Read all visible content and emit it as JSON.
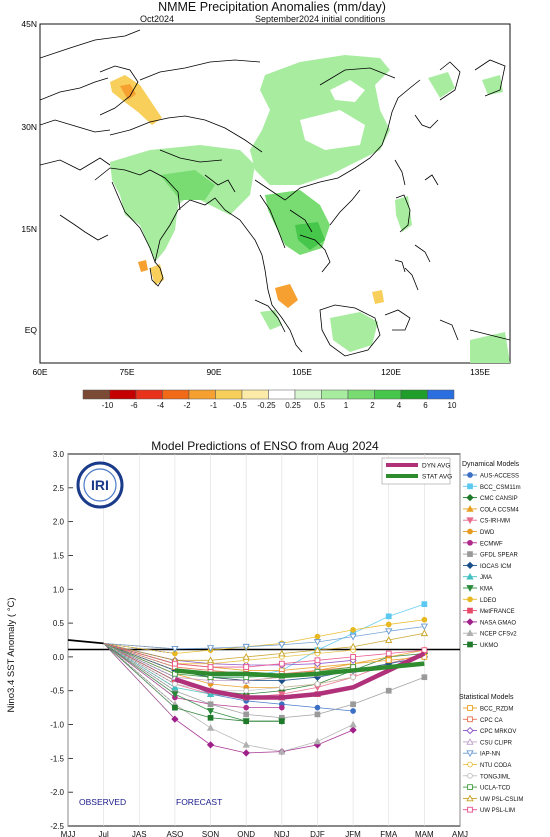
{
  "chart_data": [
    {
      "type": "map",
      "title": "NMME  Precipitation  Anomalies  (mm/day)",
      "subtitle_left": "Oct2024",
      "subtitle_right": "September2024  initial  conditions",
      "lat_ticks": [
        "45N",
        "30N",
        "15N",
        "EQ"
      ],
      "lon_ticks": [
        "60E",
        "75E",
        "90E",
        "105E",
        "120E",
        "135E"
      ],
      "colorbar": {
        "labels": [
          "-10",
          "-6",
          "-4",
          "-2",
          "-1",
          "-0.5",
          "-0.25",
          "0.25",
          "0.5",
          "1",
          "2",
          "4",
          "6",
          "10"
        ],
        "colors": [
          "#7b4a35",
          "#c40000",
          "#e8321c",
          "#f06a18",
          "#f5a030",
          "#f7cf5a",
          "#fbeaa8",
          "#ffffff",
          "#d6f5d0",
          "#a8eca0",
          "#78dc72",
          "#46c64a",
          "#1f9e2c",
          "#2a6ee0"
        ]
      }
    },
    {
      "type": "line",
      "title": "Model Predictions of ENSO from Aug 2024",
      "ylabel": "Nino3.4 SST Anomaly ( °C)",
      "ylim": [
        -2.5,
        3.0
      ],
      "yticks": [
        "3.0",
        "2.5",
        "2.0",
        "1.5",
        "1.0",
        "0.5",
        "0.0",
        "-0.5",
        "-1.0",
        "-1.5",
        "-2.0",
        "-2.5"
      ],
      "categories": [
        "MJJ",
        "Jul",
        "JAS",
        "ASO",
        "SON",
        "OND",
        "NDJ",
        "DJF",
        "JFM",
        "FMA",
        "MAM",
        "AMJ"
      ],
      "observed_label": "OBSERVED",
      "forecast_label": "FORECAST",
      "logo_text": "IRI",
      "observed": [
        0.25,
        0.2
      ],
      "averages_legend": [
        {
          "name": "DYN AVG",
          "color": "#b0307a"
        },
        {
          "name": "STAT AVG",
          "color": "#2e8b2e"
        }
      ],
      "dyn_avg": [
        -0.33,
        -0.5,
        -0.6,
        -0.6,
        -0.55,
        -0.45,
        -0.2,
        0.05
      ],
      "stat_avg": [
        -0.2,
        -0.25,
        -0.25,
        -0.28,
        -0.25,
        -0.2,
        -0.15,
        -0.1
      ],
      "dynamical_title": "Dynamical Models",
      "dynamical_models": [
        {
          "name": "AUS-ACCESS",
          "color": "#3a6fc4",
          "marker": "circle",
          "values": [
            -0.3,
            -0.55,
            -0.65,
            -0.7,
            -0.75,
            -0.8
          ]
        },
        {
          "name": "BCC_CSM11m",
          "color": "#5bc8f0",
          "marker": "square",
          "values": [
            -0.2,
            -0.3,
            -0.3,
            -0.2,
            0.1,
            0.35,
            0.6,
            0.78
          ]
        },
        {
          "name": "CMC CANSIP",
          "color": "#1f7a2a",
          "marker": "diamond",
          "values": [
            -0.35,
            -0.5,
            -0.55,
            -0.5,
            -0.4,
            -0.2,
            0.0,
            0.05
          ]
        },
        {
          "name": "COLA CCSM4",
          "color": "#e8a020",
          "marker": "triangle",
          "values": [
            -0.2,
            -0.3,
            -0.35,
            -0.3,
            -0.2,
            -0.1,
            0.0,
            0.1
          ]
        },
        {
          "name": "CS-IRI-MM",
          "color": "#e86a8a",
          "marker": "triangle-down",
          "values": [
            -0.4,
            -0.55,
            -0.6,
            -0.55,
            -0.45,
            -0.3,
            -0.1,
            0.05
          ]
        },
        {
          "name": "DWD",
          "color": "#e89a20",
          "marker": "circle",
          "values": [
            -0.25,
            -0.4,
            -0.45,
            -0.45,
            -0.4,
            -0.3
          ]
        },
        {
          "name": "ECMWF",
          "color": "#b02a8a",
          "marker": "circle",
          "values": [
            -0.6,
            -0.7,
            -0.75,
            -0.75
          ]
        },
        {
          "name": "GFDL SPEAR",
          "color": "#9a9a9a",
          "marker": "square",
          "values": [
            -0.5,
            -0.7,
            -0.85,
            -0.9,
            -0.85,
            -0.7,
            -0.5,
            -0.3
          ]
        },
        {
          "name": "IOCAS ICM",
          "color": "#1a4f8a",
          "marker": "diamond",
          "values": [
            -0.2,
            -0.3,
            -0.35,
            -0.35,
            -0.3,
            -0.2,
            -0.1,
            0.0
          ]
        },
        {
          "name": "JMA",
          "color": "#40c0c0",
          "marker": "triangle",
          "values": [
            -0.45,
            -0.55,
            -0.6,
            -0.6,
            -0.55
          ]
        },
        {
          "name": "KMA",
          "color": "#2a8a3a",
          "marker": "triangle-down",
          "values": [
            -0.55,
            -0.8,
            -0.95,
            -0.95
          ]
        },
        {
          "name": "LDEO",
          "color": "#e8b820",
          "marker": "circle",
          "values": [
            0.05,
            0.1,
            0.15,
            0.2,
            0.3,
            0.4,
            0.48,
            0.55
          ]
        },
        {
          "name": "MetFRANCE",
          "color": "#e84a6a",
          "marker": "square",
          "values": [
            -0.35,
            -0.5,
            -0.6,
            -0.6,
            -0.55
          ]
        },
        {
          "name": "NASA GMAO",
          "color": "#a0208a",
          "marker": "diamond",
          "values": [
            -0.92,
            -1.3,
            -1.42,
            -1.4,
            -1.3,
            -1.08
          ]
        },
        {
          "name": "NCEP CFSv2",
          "color": "#b0b0b0",
          "marker": "triangle",
          "values": [
            -0.7,
            -1.05,
            -1.3,
            -1.4,
            -1.25,
            -1.0
          ]
        },
        {
          "name": "UKMO",
          "color": "#1f7a2a",
          "marker": "square",
          "values": [
            -0.75,
            -0.9,
            -0.95,
            -0.95
          ]
        }
      ],
      "statistical_title": "Statistical Models",
      "statistical_models": [
        {
          "name": "BCC_RZDM",
          "color": "#e8a020",
          "marker": "square",
          "values": [
            -0.1,
            -0.15,
            -0.2,
            -0.2,
            -0.15,
            -0.1,
            -0.05,
            0.0
          ]
        },
        {
          "name": "CPC CA",
          "color": "#e87050",
          "marker": "square",
          "values": [
            -0.15,
            -0.2,
            -0.25,
            -0.25,
            -0.2,
            -0.15
          ]
        },
        {
          "name": "CPC MRKOV",
          "color": "#8a50c8",
          "marker": "diamond",
          "values": [
            -0.05,
            -0.1,
            -0.12,
            -0.12,
            -0.1,
            -0.05
          ]
        },
        {
          "name": "CSU CLIPR",
          "color": "#c0a0c8",
          "marker": "triangle",
          "values": [
            -0.3,
            -0.35,
            -0.35,
            -0.3,
            -0.25,
            -0.2
          ]
        },
        {
          "name": "IAP-NN",
          "color": "#6a9ad0",
          "marker": "triangle-down",
          "values": [
            0.12,
            0.13,
            0.15,
            0.18,
            0.22,
            0.3,
            0.38,
            0.45
          ]
        },
        {
          "name": "NTU CODA",
          "color": "#e8c040",
          "marker": "circle",
          "values": [
            -0.1,
            -0.1,
            -0.05,
            0.0,
            0.05,
            0.1
          ]
        },
        {
          "name": "TONGJIML",
          "color": "#c0c0c0",
          "marker": "circle",
          "values": [
            -0.4,
            -0.5,
            -0.5,
            -0.45,
            -0.4,
            -0.3
          ]
        },
        {
          "name": "UCLA-TCD",
          "color": "#40a040",
          "marker": "square",
          "values": [
            -0.25,
            -0.3,
            -0.3,
            -0.28,
            -0.22,
            -0.15
          ]
        },
        {
          "name": "UW PSL-CSLIM",
          "color": "#c8a020",
          "marker": "triangle",
          "values": [
            -0.05,
            -0.05,
            0.0,
            0.05,
            0.1,
            0.15,
            0.25,
            0.35
          ]
        },
        {
          "name": "UW PSL-LIM",
          "color": "#e8508a",
          "marker": "square",
          "values": [
            -0.1,
            -0.15,
            -0.15,
            -0.1,
            -0.05,
            0.0,
            0.05,
            0.1
          ]
        }
      ]
    }
  ]
}
